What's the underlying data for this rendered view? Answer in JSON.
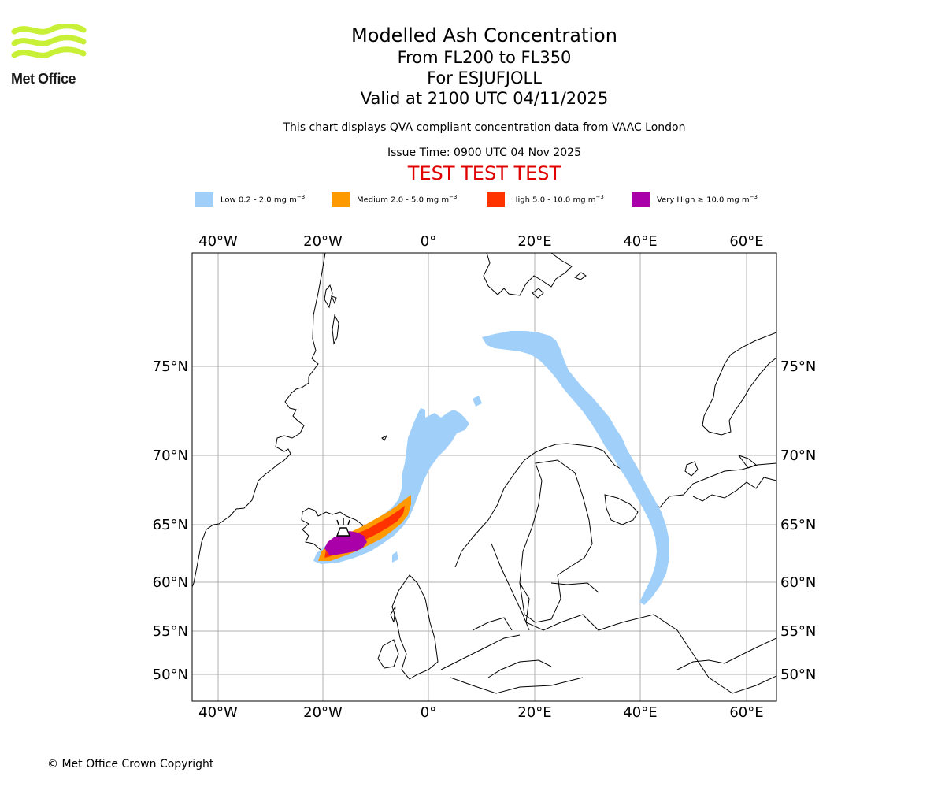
{
  "logo": {
    "text": "Met Office",
    "color": "#c8f036"
  },
  "title": {
    "main": "Modelled Ash Concentration",
    "levels": "From FL200 to FL350",
    "volcano": "For ESJUFJOLL",
    "valid": "Valid at 2100 UTC 04/11/2025",
    "description": "This chart displays QVA compliant concentration data from VAAC London",
    "issue": "Issue Time: 0900 UTC 04 Nov 2025",
    "warning": "TEST TEST TEST"
  },
  "legend": [
    {
      "label": "Low 0.2 - 2.0 mg m",
      "color": "#a0d0fa"
    },
    {
      "label": "Medium 2.0 - 5.0 mg m",
      "color": "#ff9900"
    },
    {
      "label": "High 5.0 - 10.0 mg m",
      "color": "#ff3300"
    },
    {
      "label": "Very High ≥ 10.0 mg m",
      "color": "#aa00aa"
    }
  ],
  "legend_unit_exponent": "−3",
  "map": {
    "lon_labels": [
      "40°W",
      "20°W",
      "0°",
      "20°E",
      "40°E",
      "60°E"
    ],
    "lat_labels": [
      "75°N",
      "70°N",
      "65°N",
      "60°N",
      "55°N",
      "50°N"
    ],
    "volcano_symbol": "volcano"
  },
  "copyright": "© Met Office Crown Copyright"
}
